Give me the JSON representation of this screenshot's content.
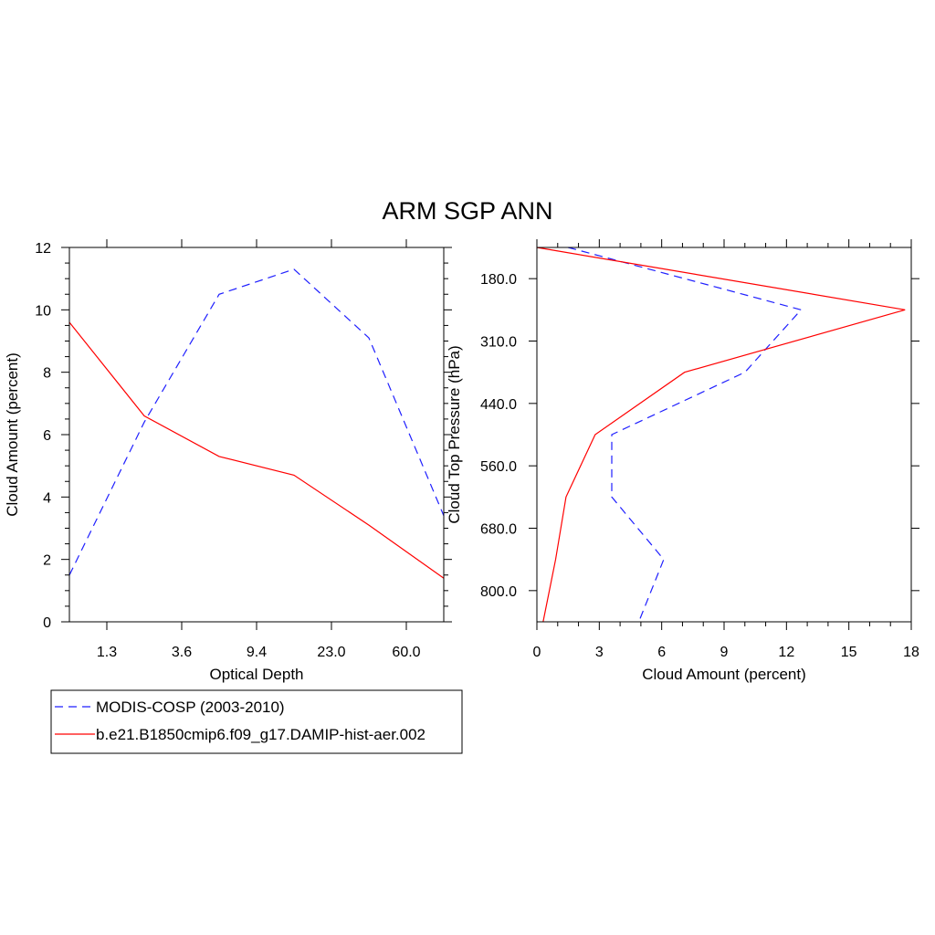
{
  "figure": {
    "title": "ARM SGP ANN"
  },
  "colors": {
    "obs": "#1f1fff",
    "model": "#ff0000",
    "axis": "#000000",
    "background": "#ffffff"
  },
  "legend": {
    "entries": [
      {
        "label": "MODIS-COSP (2003-2010)",
        "color": "#1f1fff",
        "style": "dashed"
      },
      {
        "label": "b.e21.B1850cmip6.f09_g17.DAMIP-hist-aer.002",
        "color": "#ff0000",
        "style": "solid"
      }
    ],
    "placement": "bottom-left"
  },
  "chart_data": [
    {
      "type": "line",
      "xlabel": "Optical Depth",
      "ylabel": "Cloud Amount (percent)",
      "x_tick_labels": [
        "1.3",
        "3.6",
        "9.4",
        "23.0",
        "60.0"
      ],
      "y_ticks": [
        0,
        2,
        4,
        6,
        8,
        10,
        12
      ],
      "ylim": [
        0,
        12
      ],
      "x": [
        0,
        1,
        2,
        3,
        4,
        5
      ],
      "series": [
        {
          "name": "MODIS-COSP (2003-2010)",
          "style": "dashed",
          "color": "#1f1fff",
          "values": [
            1.5,
            6.4,
            10.5,
            11.3,
            9.1,
            3.4
          ]
        },
        {
          "name": "b.e21.B1850cmip6.f09_g17.DAMIP-hist-aer.002",
          "style": "solid",
          "color": "#ff0000",
          "values": [
            9.6,
            6.6,
            5.3,
            4.7,
            3.1,
            1.4
          ]
        }
      ],
      "grid": false
    },
    {
      "type": "line",
      "orientation": "vertical-profile",
      "xlabel": "Cloud Amount (percent)",
      "ylabel": "Cloud Top Pressure (hPa)",
      "x_ticks": [
        0,
        3,
        6,
        9,
        12,
        15,
        18
      ],
      "xlim": [
        0,
        18
      ],
      "y_tick_labels": [
        "180.0",
        "310.0",
        "440.0",
        "560.0",
        "680.0",
        "800.0"
      ],
      "y_inverted": true,
      "levels": [
        0,
        1,
        2,
        3,
        4,
        5,
        6
      ],
      "series": [
        {
          "name": "MODIS-COSP (2003-2010)",
          "style": "dashed",
          "color": "#1f1fff",
          "values": [
            1.5,
            12.7,
            10.0,
            3.6,
            3.6,
            6.1,
            4.9
          ]
        },
        {
          "name": "b.e21.B1850cmip6.f09_g17.DAMIP-hist-aer.002",
          "style": "solid",
          "color": "#ff0000",
          "values": [
            0.0,
            17.7,
            7.1,
            2.8,
            1.4,
            0.9,
            0.3
          ]
        }
      ],
      "grid": false
    }
  ]
}
